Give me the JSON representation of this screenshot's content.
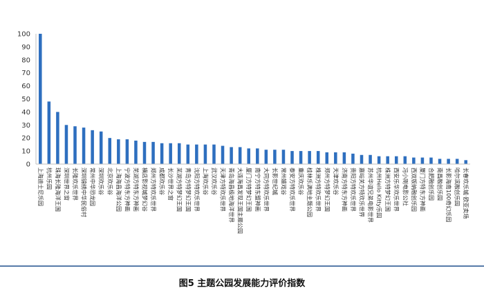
{
  "chart_data": {
    "type": "bar",
    "title": "",
    "xlabel": "",
    "ylabel": "",
    "ylim": [
      0,
      100
    ],
    "yticks": [
      0,
      10,
      20,
      30,
      40,
      50,
      60,
      70,
      80,
      90,
      100
    ],
    "grid": false,
    "legend": "none",
    "bar_color": "#2e6fbf",
    "caption": "图5 主题公园发展能力评价指数",
    "categories": [
      "上海迪士尼乐园",
      "杭州乐园",
      "珠海长隆海洋王国",
      "深圳世界之窗",
      "长隆欢乐世界",
      "深圳锦绣中华民俗村",
      "常州中华恐龙园",
      "深圳欢乐谷",
      "北京欢乐谷",
      "上海海昌海洋公园",
      "宁波方特东方神画",
      "芜湖方特东方神画",
      "横店影视城梦幻谷",
      "郑州方特欢乐世界",
      "成都欢乐谷",
      "长沙世界之窗",
      "芜湖方特梦幻王国",
      "青岛方特梦幻王国",
      "沈阳方特欢乐世界",
      "上海欢乐谷",
      "武汉欢乐谷",
      "天津方特欢乐世界",
      "青岛海昌极地海洋世界",
      "大连海昌发现王国主题公园",
      "厦门方特梦幻王国",
      "南宁方特东盟神画",
      "大同方特欢乐世界",
      "长影世纪城",
      "常州嬉戏谷",
      "泰安方特欢乐世界",
      "重庆欢乐谷",
      "桂林乐满地主题公园",
      "株洲方特欢乐世界",
      "郑州方特梦幻王国",
      "天津欢乐谷",
      "济南方特东方神画",
      "贵阳方特欢乐世界",
      "嘉峪关方特欢乐世界",
      "苏州华谊兄弟电影世界",
      "杭州Hello Kitty乐园",
      "株洲方特梦幻王国",
      "西安乐华欢乐世界",
      "冯小刚电影公社",
      "西双版纳融创乐园",
      "厦门方特东方神画",
      "合肥融创乐园",
      "南昌融创乐园",
      "长影海南100奇幻乐园",
      "哈尔滨融创乐园",
      "长春欢乐城·欧亚卖场"
    ],
    "values": [
      100,
      48,
      40,
      30,
      29,
      28,
      26,
      25,
      20,
      19,
      19,
      18,
      17,
      17,
      16,
      16,
      16,
      15,
      15,
      15,
      15,
      14,
      13,
      13,
      12,
      12,
      11,
      11,
      11,
      10,
      10,
      10,
      10,
      9,
      9,
      9,
      8,
      7,
      7,
      6,
      6,
      6,
      6,
      5,
      5,
      5,
      4,
      4,
      4,
      3
    ]
  }
}
